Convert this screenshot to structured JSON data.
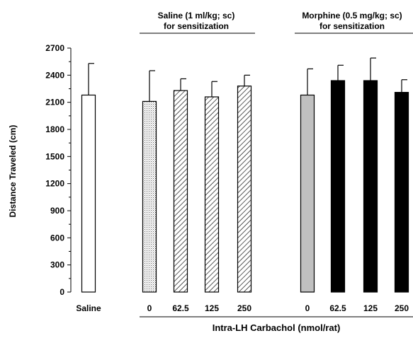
{
  "chart_data": {
    "type": "bar",
    "ylabel": "Distance Traveled (cm)",
    "xlabel": "Intra-LH Carbachol (nmol/rat)",
    "ylim": [
      0,
      2700
    ],
    "yticks": [
      0,
      300,
      600,
      900,
      1200,
      1500,
      1800,
      2100,
      2400,
      2700
    ],
    "group_labels": [
      {
        "line1": "Saline (1 ml/kg; sc)",
        "line2": "for sensitization"
      },
      {
        "line1": "Morphine (0.5 mg/kg; sc)",
        "line2": "for sensitization"
      }
    ],
    "bars": [
      {
        "label": "Saline",
        "value": 2180,
        "error": 350,
        "fill": "white"
      },
      {
        "label": "0",
        "value": 2110,
        "error": 340,
        "fill": "dotted"
      },
      {
        "label": "62.5",
        "value": 2230,
        "error": 130,
        "fill": "hatched"
      },
      {
        "label": "125",
        "value": 2160,
        "error": 170,
        "fill": "hatched"
      },
      {
        "label": "250",
        "value": 2280,
        "error": 120,
        "fill": "hatched"
      },
      {
        "label": "0",
        "value": 2180,
        "error": 290,
        "fill": "gray"
      },
      {
        "label": "62.5",
        "value": 2340,
        "error": 170,
        "fill": "black"
      },
      {
        "label": "125",
        "value": 2340,
        "error": 250,
        "fill": "black"
      },
      {
        "label": "250",
        "value": 2210,
        "error": 140,
        "fill": "black"
      }
    ],
    "colors": {
      "gray": "#c0c0c0",
      "black": "#000000",
      "white": "#ffffff"
    }
  }
}
